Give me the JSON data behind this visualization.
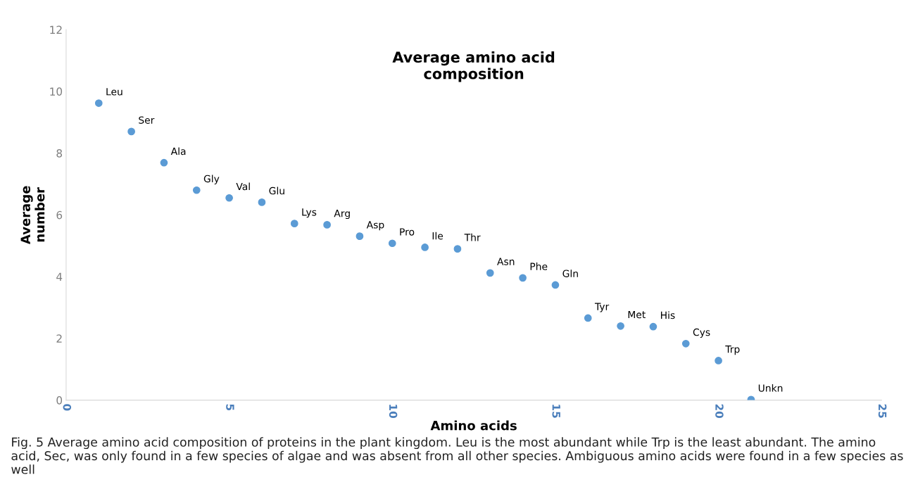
{
  "chart_data": {
    "type": "scatter",
    "title": "Average amino acid\ncomposition",
    "xlabel": "Amino acids",
    "ylabel": "Average\nnumber",
    "x": [
      1,
      2,
      3,
      4,
      5,
      6,
      7,
      8,
      9,
      10,
      11,
      12,
      13,
      14,
      15,
      16,
      17,
      18,
      19,
      20,
      21
    ],
    "values": [
      9.62,
      8.7,
      7.69,
      6.8,
      6.55,
      6.41,
      5.72,
      5.68,
      5.31,
      5.08,
      4.95,
      4.9,
      4.12,
      3.96,
      3.73,
      2.66,
      2.4,
      2.38,
      1.83,
      1.28,
      0.02
    ],
    "color": "#5b9bd5",
    "marker": "circle",
    "grid": false,
    "legend": false,
    "xlim": [
      0,
      25
    ],
    "xticks": [
      0,
      5,
      10,
      15,
      20,
      25
    ],
    "ylim": [
      0,
      12
    ],
    "yticks": [
      0,
      2,
      4,
      6,
      8,
      10,
      12
    ],
    "annotations": [
      {
        "text": "Leu",
        "x": 1,
        "y": 9.62
      },
      {
        "text": "Ser",
        "x": 2,
        "y": 8.7
      },
      {
        "text": "Ala",
        "x": 3,
        "y": 7.69
      },
      {
        "text": "Gly",
        "x": 4,
        "y": 6.8
      },
      {
        "text": "Val",
        "x": 5,
        "y": 6.55
      },
      {
        "text": "Glu",
        "x": 6,
        "y": 6.41
      },
      {
        "text": "Lys",
        "x": 7,
        "y": 5.72
      },
      {
        "text": "Arg",
        "x": 8,
        "y": 5.68
      },
      {
        "text": "Asp",
        "x": 9,
        "y": 5.31
      },
      {
        "text": "Pro",
        "x": 10,
        "y": 5.08
      },
      {
        "text": "Ile",
        "x": 11,
        "y": 4.95
      },
      {
        "text": "Thr",
        "x": 12,
        "y": 4.9
      },
      {
        "text": "Asn",
        "x": 13,
        "y": 4.12
      },
      {
        "text": "Phe",
        "x": 14,
        "y": 3.96
      },
      {
        "text": "Gln",
        "x": 15,
        "y": 3.73
      },
      {
        "text": "Tyr",
        "x": 16,
        "y": 2.66
      },
      {
        "text": "Met",
        "x": 17,
        "y": 2.4
      },
      {
        "text": "His",
        "x": 18,
        "y": 2.38
      },
      {
        "text": "Cys",
        "x": 19,
        "y": 1.83
      },
      {
        "text": "Trp",
        "x": 20,
        "y": 1.28
      },
      {
        "text": "Unkn",
        "x": 21,
        "y": 0.02
      },
      "Fig. 5 Average amino acid composition of proteins in the plant kingdom. Leu is the most abundant while Trp is the least abundant. The amino acid, Sec, was only found in a few species of algae and was absent from all other species. Ambiguous amino acids were found in a few species as well"
    ]
  }
}
